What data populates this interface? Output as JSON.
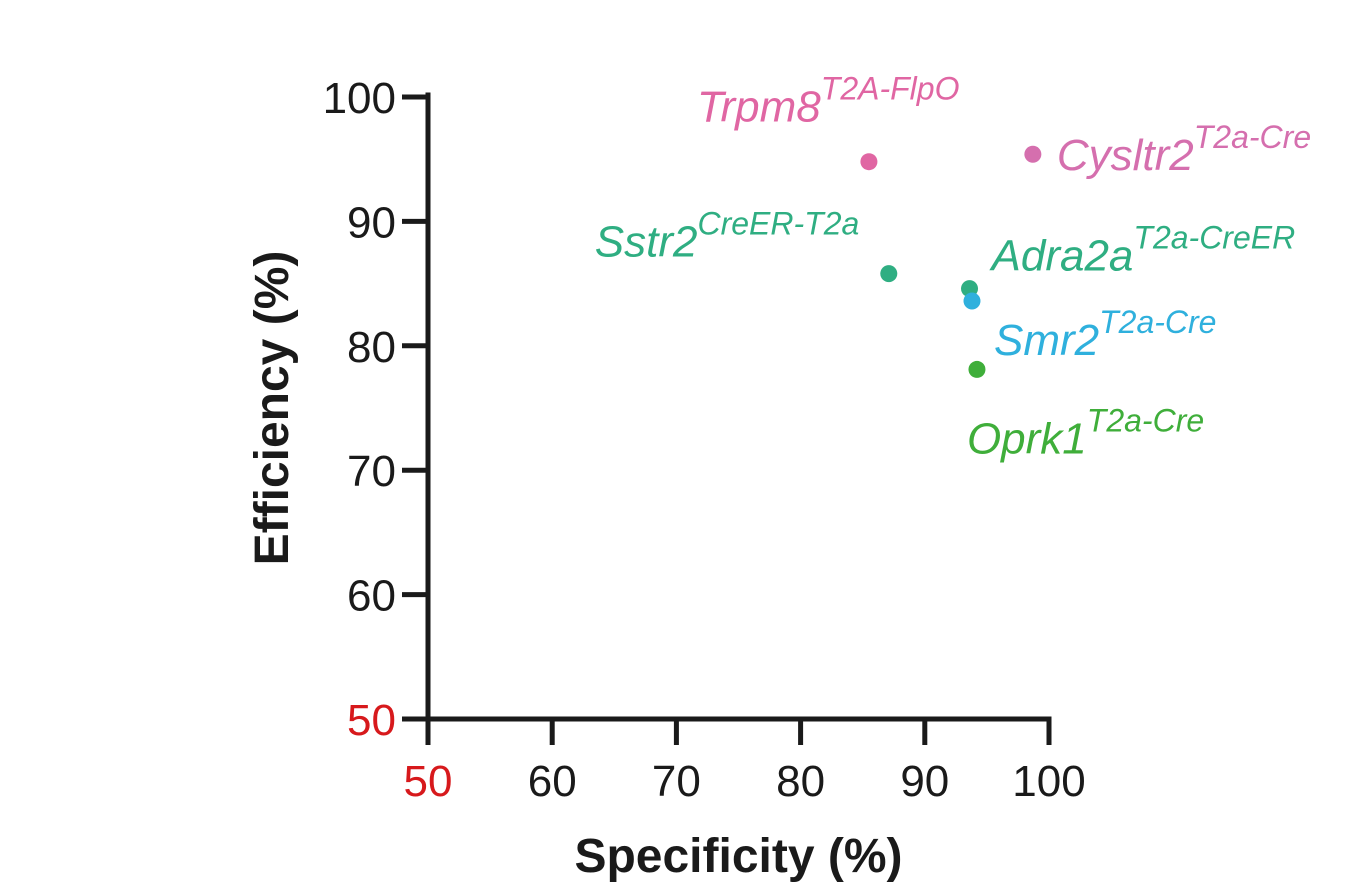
{
  "chart_data": {
    "type": "scatter",
    "title": "",
    "xlabel": "Specificity (%)",
    "ylabel": "Efficiency (%)",
    "xlim": [
      50,
      100
    ],
    "ylim": [
      50,
      100
    ],
    "x_ticks": [
      50,
      60,
      70,
      80,
      90,
      100
    ],
    "y_ticks": [
      50,
      60,
      70,
      80,
      90,
      100
    ],
    "highlight_tick": 50,
    "highlight_color": "#d7191c",
    "axis_color": "#1a1a1a",
    "grid": false,
    "legend": "none",
    "points": [
      {
        "label": "Trpm8",
        "superscript": "T2A-FlpO",
        "x": 85.5,
        "y": 94.8,
        "color": "#e066a3"
      },
      {
        "label": "Cysltr2",
        "superscript": "T2a-Cre",
        "x": 98.7,
        "y": 95.4,
        "color": "#d56fae"
      },
      {
        "label": "Sstr2",
        "superscript": "CreER-T2a",
        "x": 87.1,
        "y": 85.8,
        "color": "#2fae82"
      },
      {
        "label": "Adra2a",
        "superscript": "T2a-CreER",
        "x": 93.6,
        "y": 84.6,
        "color": "#2fae82"
      },
      {
        "label": "Smr2",
        "superscript": "T2a-Cre",
        "x": 93.8,
        "y": 83.6,
        "color": "#2fb0dd"
      },
      {
        "label": "Oprk1",
        "superscript": "T2a-Cre",
        "x": 94.2,
        "y": 78.1,
        "color": "#3fae3a"
      }
    ]
  }
}
